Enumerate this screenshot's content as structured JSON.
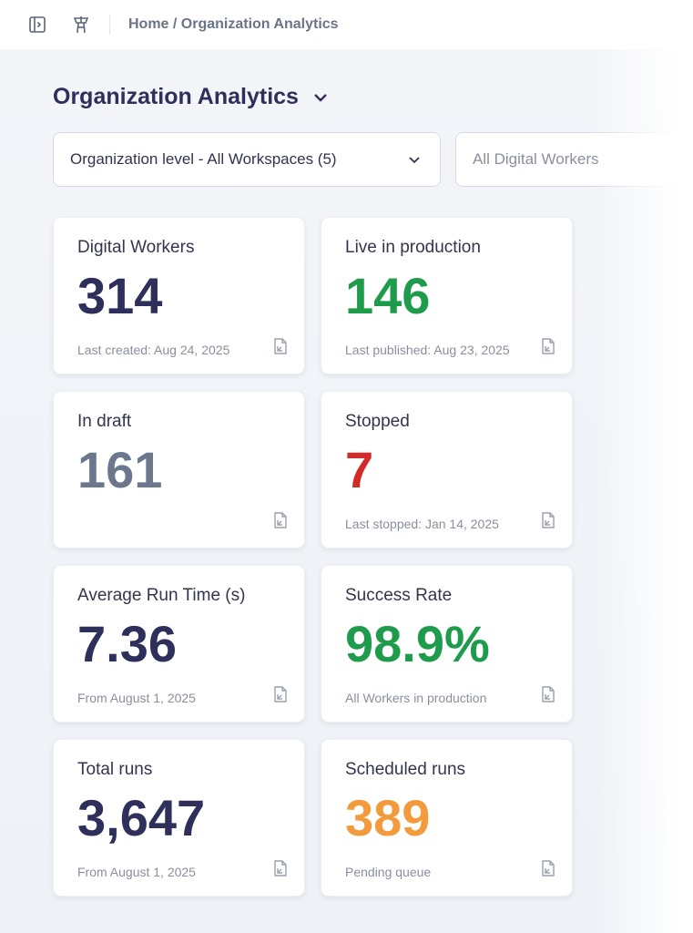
{
  "header": {
    "breadcrumb": "Home / Organization Analytics",
    "icons": [
      "sidebar-toggle-icon",
      "watchtower-icon"
    ]
  },
  "page": {
    "title": "Organization Analytics"
  },
  "filters": {
    "scope": "Organization level - All Workspaces (5)",
    "workers": "All Digital Workers"
  },
  "colors": {
    "navy": "#2e2f5a",
    "green": "#1e9b4b",
    "gray": "#6b778c",
    "red": "#d42a2a",
    "orange": "#f39a3c"
  },
  "cards": [
    {
      "title": "Digital Workers",
      "value": "314",
      "sub": "Last created: Aug 24, 2025",
      "color": "#2e2f5a"
    },
    {
      "title": "Live in production",
      "value": "146",
      "sub": "Last published: Aug 23, 2025",
      "color": "#1e9b4b"
    },
    {
      "title": "In draft",
      "value": "161",
      "sub": "",
      "color": "#6b778c"
    },
    {
      "title": "Stopped",
      "value": "7",
      "sub": "Last stopped: Jan 14, 2025",
      "color": "#d42a2a"
    },
    {
      "title": "Average Run Time (s)",
      "value": "7.36",
      "sub": "From August 1, 2025",
      "color": "#2e2f5a"
    },
    {
      "title": "Success Rate",
      "value": "98.9%",
      "sub": "All Workers in production",
      "color": "#1e9b4b"
    },
    {
      "title": "Total runs",
      "value": "3,647",
      "sub": "From August 1, 2025",
      "color": "#2e2f5a"
    },
    {
      "title": "Scheduled runs",
      "value": "389",
      "sub": "Pending queue",
      "color": "#f39a3c"
    }
  ]
}
